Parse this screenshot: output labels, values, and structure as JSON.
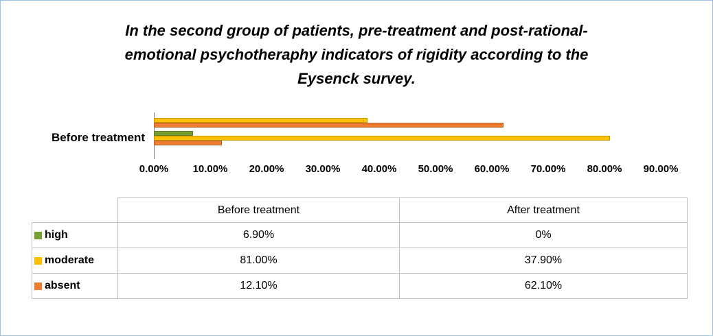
{
  "title_lines": [
    "In the second group of patients, pre-treatment and post-rational-",
    "emotional psychotheraphy indicators of rigidity according to the",
    "Eysenck survey."
  ],
  "chart_data": {
    "type": "bar",
    "orientation": "horizontal",
    "title": "In the second group of patients, pre-treatment and post-rational-emotional psychotheraphy indicators of rigidity according to the Eysenck survey.",
    "categories": [
      "After treatment",
      "Before treatment"
    ],
    "visible_category_labels": [
      "Before treatment"
    ],
    "series": [
      {
        "name": "high",
        "color": "#77a033",
        "values": [
          0,
          6.9
        ]
      },
      {
        "name": "moderate",
        "color": "#ffc000",
        "values": [
          37.9,
          81.0
        ]
      },
      {
        "name": "absent",
        "color": "#ed7d31",
        "values": [
          62.1,
          12.1
        ]
      }
    ],
    "x_unit": "%",
    "xlim": [
      0,
      90
    ],
    "x_ticks": [
      "0.00%",
      "10.00%",
      "20.00%",
      "30.00%",
      "40.00%",
      "50.00%",
      "60.00%",
      "70.00%",
      "80.00%",
      "90.00%"
    ],
    "grid": false,
    "legend": "shown-in-table"
  },
  "table": {
    "column_headers": [
      "",
      "Before treatment",
      "After treatment"
    ],
    "rows": [
      {
        "label": "high",
        "swatch_color": "#77a033",
        "values": [
          "6.90%",
          "0%"
        ]
      },
      {
        "label": "moderate",
        "swatch_color": "#ffc000",
        "values": [
          "81.00%",
          "37.90%"
        ]
      },
      {
        "label": "absent",
        "swatch_color": "#ed7d31",
        "values": [
          "12.10%",
          "62.10%"
        ]
      }
    ]
  },
  "colors": {
    "frame_border": "#9dc3e6",
    "table_grid": "#bfbfbf",
    "axis_line": "#7f7f7f"
  }
}
